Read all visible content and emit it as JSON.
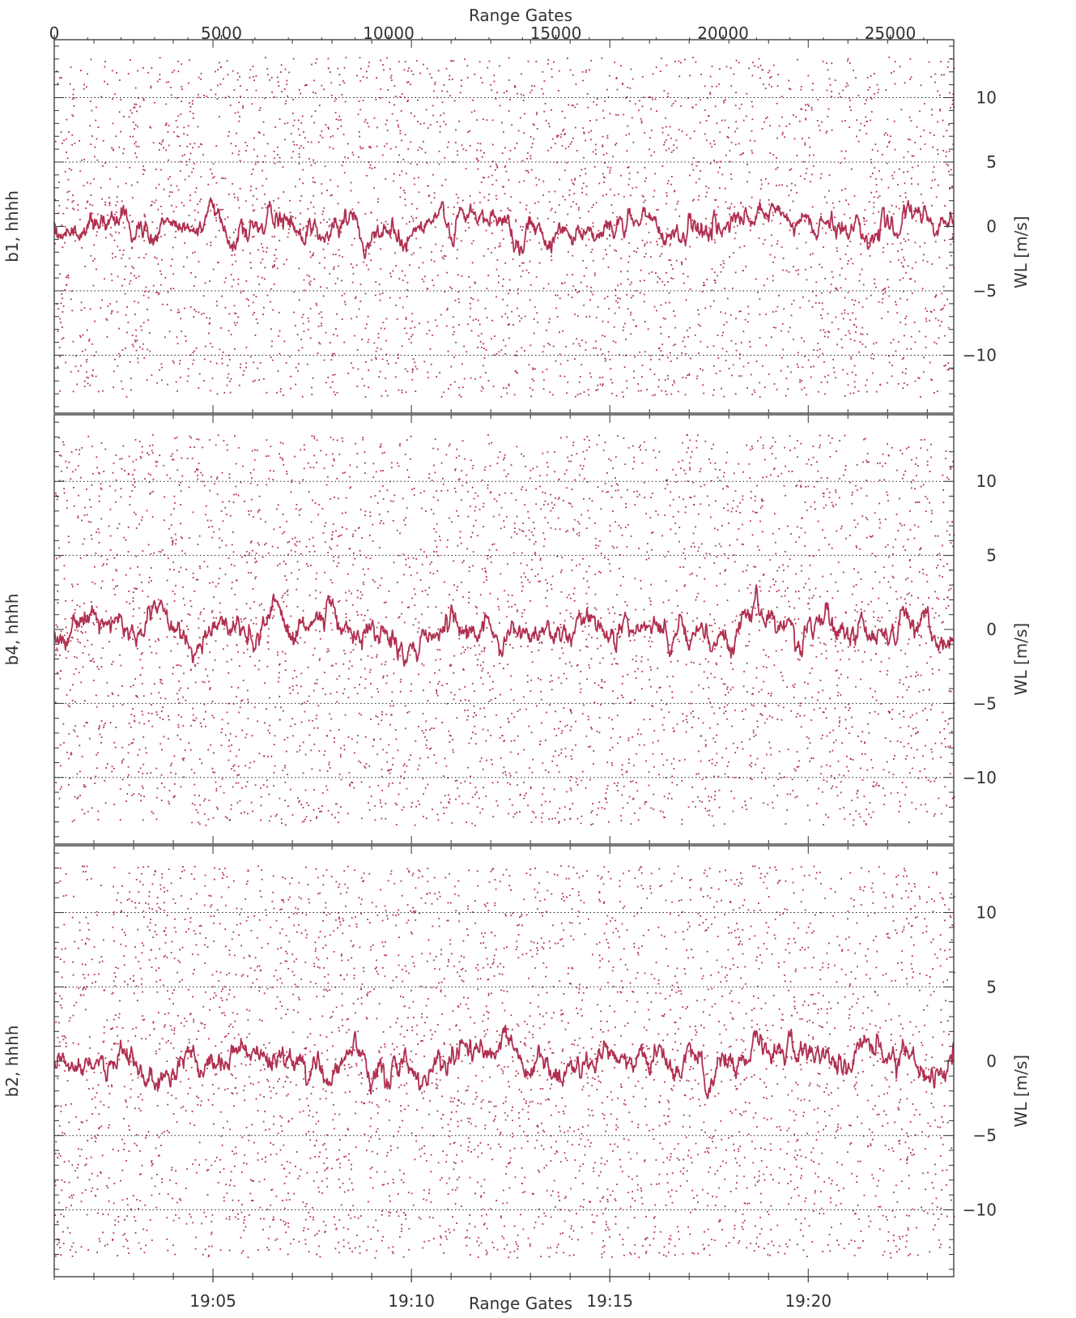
{
  "chart_data": {
    "type": "scatter",
    "top_axis": {
      "label": "Range Gates",
      "range": [
        0,
        26900
      ],
      "ticks": [
        0,
        5000,
        10000,
        15000,
        20000,
        25000
      ],
      "tick_labels": [
        "0",
        "5000",
        "10000",
        "15000",
        "20000",
        "25000"
      ]
    },
    "bottom_axis": {
      "label": "Range Gates",
      "time_range": [
        "19:01:00",
        "19:23:40"
      ],
      "ticks": [
        "19:05",
        "19:10",
        "19:15",
        "19:20"
      ],
      "tick_labels": [
        "19:05",
        "19:10",
        "19:15",
        "19:20"
      ]
    },
    "y_axis": {
      "label": "WL [m/s]",
      "range": [
        -14.5,
        14.5
      ],
      "ticks": [
        -10,
        -5,
        0,
        5,
        10
      ],
      "tick_labels": [
        "−10",
        "−5",
        "0",
        "5",
        "10"
      ],
      "scatter_extent": [
        -13.2,
        13.2
      ],
      "grid": "dotted at -10, -5, 5, 10"
    },
    "panels": [
      {
        "name": "b1, hhhh",
        "trend_approx": {
          "mean": 0.0,
          "std": 0.8,
          "min": -2.5,
          "max": 2.8
        }
      },
      {
        "name": "b4, hhhh",
        "trend_approx": {
          "mean": 0.0,
          "std": 0.8,
          "min": -2.5,
          "max": 3.0
        }
      },
      {
        "name": "b2, hhhh",
        "trend_approx": {
          "mean": 0.0,
          "std": 0.8,
          "min": -2.5,
          "max": 2.5
        }
      }
    ],
    "legend": "none",
    "colors": {
      "data": "#b03050",
      "axes": "#333333",
      "grid": "#222222"
    }
  }
}
